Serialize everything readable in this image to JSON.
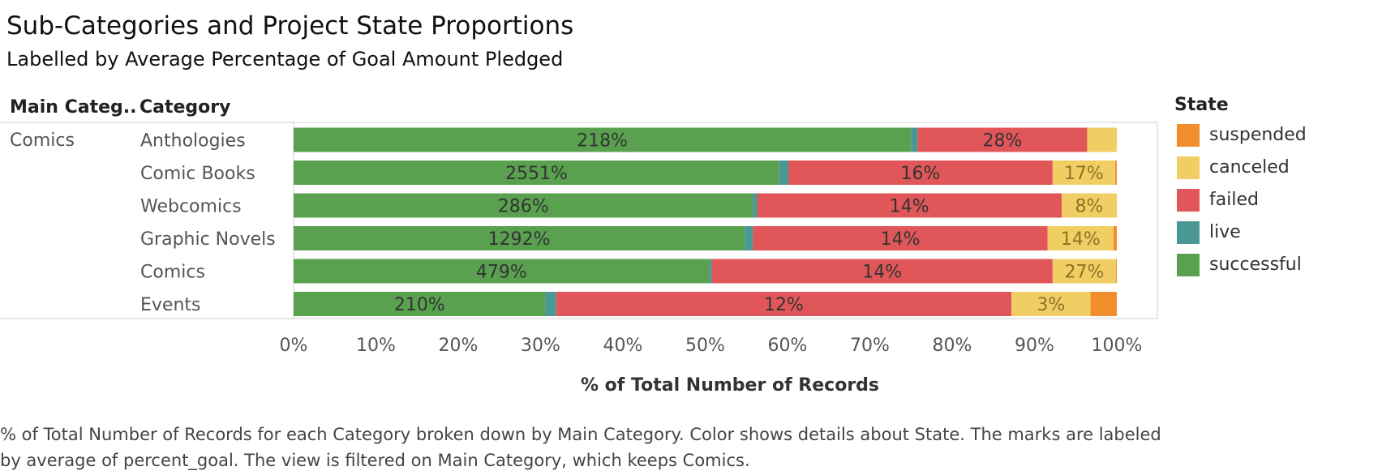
{
  "header": {
    "title": "Sub-Categories and Project State Proportions",
    "subtitle": "Labelled by Average Percentage of Goal Amount Pledged",
    "main_category_header": "Main Categ..",
    "category_header": "Category"
  },
  "legend": {
    "title": "State",
    "items": [
      {
        "label": "suspended",
        "color": "#F28E2B"
      },
      {
        "label": "canceled",
        "color": "#F1CE63"
      },
      {
        "label": "failed",
        "color": "#E15759"
      },
      {
        "label": "live",
        "color": "#499894"
      },
      {
        "label": "successful",
        "color": "#59A14F"
      }
    ]
  },
  "caption": "% of Total Number of Records for each Category broken down by Main Category.  Color shows details about State.  The marks are labeled by average of percent_goal. The view is filtered on Main Category, which keeps Comics.",
  "chart_data": {
    "type": "bar",
    "orientation": "horizontal",
    "stacked": true,
    "main_category": "Comics",
    "categories": [
      "Anthologies",
      "Comic Books",
      "Webcomics",
      "Graphic Novels",
      "Comics",
      "Events"
    ],
    "xlabel": "% of Total Number of Records",
    "xlim": [
      0,
      100
    ],
    "xticks": [
      "0%",
      "10%",
      "20%",
      "30%",
      "40%",
      "50%",
      "60%",
      "70%",
      "80%",
      "90%",
      "100%"
    ],
    "series": [
      {
        "name": "successful",
        "color": "#59A14F",
        "values": [
          75.0,
          59.0,
          55.8,
          54.8,
          50.5,
          30.6
        ],
        "labels": [
          "218%",
          "2551%",
          "286%",
          "1292%",
          "479%",
          "210%"
        ]
      },
      {
        "name": "live",
        "color": "#499894",
        "values": [
          0.8,
          1.1,
          0.5,
          1.0,
          0.3,
          1.3
        ],
        "labels": [
          "",
          "",
          "",
          "",
          "",
          ""
        ]
      },
      {
        "name": "failed",
        "color": "#E15759",
        "values": [
          20.6,
          32.1,
          37.0,
          35.8,
          41.4,
          55.3
        ],
        "labels": [
          "28%",
          "16%",
          "14%",
          "14%",
          "14%",
          "12%"
        ]
      },
      {
        "name": "canceled",
        "color": "#F1CE63",
        "values": [
          3.6,
          7.6,
          6.7,
          8.0,
          7.7,
          9.6
        ],
        "labels": [
          "",
          "17%",
          "8%",
          "14%",
          "27%",
          "3%"
        ]
      },
      {
        "name": "suspended",
        "color": "#F28E2B",
        "values": [
          0.0,
          0.2,
          0.0,
          0.4,
          0.1,
          3.2
        ],
        "labels": [
          "",
          "",
          "",
          "",
          "",
          ""
        ]
      }
    ]
  }
}
